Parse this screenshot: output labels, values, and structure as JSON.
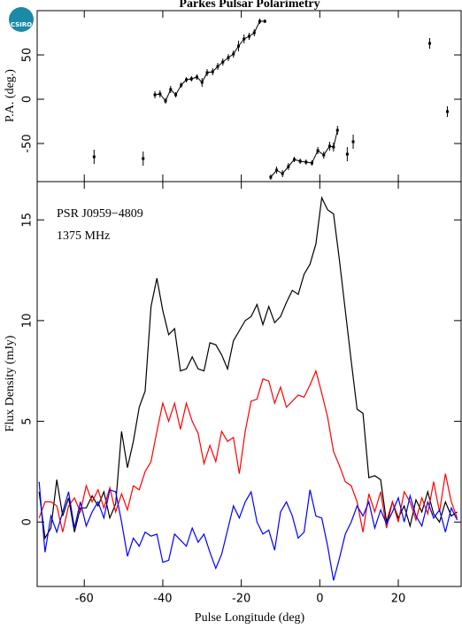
{
  "logo_text": "CSIRO",
  "chart_data": [
    {
      "type": "scatter",
      "title": "Parkes Pulsar Polarimetry",
      "y_label": "P.A. (deg.)",
      "xlim": [
        -72,
        36
      ],
      "ylim": [
        -93,
        100
      ],
      "xticks": [
        -60,
        -40,
        -20,
        0,
        20
      ],
      "yticks": [
        -50,
        0,
        50
      ],
      "color": "#000000",
      "segments": [
        {
          "connected": false,
          "x": [
            -57.5,
            -45
          ],
          "values": [
            -65,
            -67
          ],
          "errors": [
            8,
            8
          ]
        },
        {
          "connected": true,
          "x": [
            -42,
            -40.7,
            -39.3,
            -38,
            -36.7,
            -35.3,
            -34,
            -32.7,
            -31.3,
            -30,
            -28.7,
            -27.3,
            -26,
            -24.7,
            -23.3,
            -22,
            -20.7,
            -19.3,
            -18,
            -16.7,
            -15.3,
            -14
          ],
          "values": [
            5,
            6,
            -2,
            11,
            5,
            16,
            22,
            23,
            25,
            19,
            30,
            31,
            37,
            42,
            47,
            51,
            60,
            68,
            71,
            75,
            88,
            88
          ],
          "errors": [
            4,
            4,
            3,
            4,
            3,
            3,
            3,
            3,
            3,
            5,
            4,
            4,
            4,
            4,
            4,
            4,
            6,
            5,
            4,
            4,
            3,
            2
          ]
        },
        {
          "connected": true,
          "x": [
            -12.5,
            -11,
            -9.5,
            -8,
            -6.5,
            -5,
            -3.5,
            -2,
            -0.5,
            1,
            2.5,
            3.5,
            4.5
          ],
          "values": [
            -88,
            -80,
            -84,
            -76,
            -68,
            -70,
            -71,
            -72,
            -58,
            -63,
            -53,
            -54,
            -35
          ],
          "errors": [
            3,
            4,
            4,
            4,
            3,
            3,
            3,
            3,
            4,
            4,
            5,
            5,
            5
          ]
        },
        {
          "connected": false,
          "x": [
            7,
            8.5,
            28,
            32.5
          ],
          "values": [
            -62,
            -48,
            63,
            -14
          ],
          "errors": [
            8,
            8,
            6,
            6
          ]
        }
      ]
    },
    {
      "type": "line",
      "x_label": "Pulse Longitude (deg)",
      "y_label": "Flux Density (mJy)",
      "annotations": [
        "PSR J0959−4809",
        "1375 MHz"
      ],
      "xlim": [
        -72,
        36
      ],
      "ylim": [
        -3.2,
        16.9
      ],
      "xticks": [
        -60,
        -40,
        -20,
        0,
        20
      ],
      "yticks": [
        0,
        5,
        10,
        15
      ],
      "x": [
        -71.5,
        -70,
        -68.5,
        -67,
        -65.5,
        -64,
        -62.5,
        -61,
        -59.5,
        -58,
        -56.5,
        -55,
        -53.5,
        -52,
        -50.5,
        -49,
        -47.5,
        -46,
        -44.5,
        -43,
        -41.5,
        -40,
        -38.5,
        -37,
        -35.5,
        -34,
        -32.5,
        -31,
        -29.5,
        -28,
        -26.5,
        -25,
        -23.5,
        -22,
        -20.5,
        -19,
        -17.5,
        -16,
        -14.5,
        -13,
        -11.5,
        -10,
        -8.5,
        -7,
        -5.5,
        -4,
        -2.5,
        -1,
        0.5,
        2,
        3.5,
        5,
        6.5,
        8,
        9.5,
        11,
        12.5,
        14,
        15.5,
        17,
        18.5,
        20,
        21.5,
        23,
        24.5,
        26,
        27.5,
        29,
        30.5,
        32,
        33.5,
        35
      ],
      "series": [
        {
          "color": "#000000",
          "values": [
            1.5,
            -0.8,
            -0.3,
            2.1,
            0.3,
            1.2,
            -0.5,
            0.7,
            0.7,
            1.3,
            0.8,
            1.5,
            0.2,
            0.9,
            4.5,
            2.7,
            4.0,
            5.7,
            6.5,
            10.7,
            12.1,
            10.5,
            9.3,
            9.6,
            7.5,
            7.6,
            8.2,
            7.6,
            7.5,
            8.9,
            8.8,
            8.3,
            7.6,
            9.0,
            9.5,
            10.0,
            10.2,
            10.8,
            9.8,
            10.7,
            9.9,
            10.2,
            10.9,
            11.5,
            11.3,
            12.3,
            12.8,
            13.8,
            16.1,
            15.5,
            15.3,
            13.0,
            10.5,
            8.0,
            5.6,
            5.4,
            2.2,
            2.3,
            2.1,
            0.0,
            1.0,
            0.2,
            0.8,
            -0.2,
            1.1,
            0.5,
            1.5,
            0.4,
            0.0,
            1.0,
            0.3,
            0.5
          ]
        },
        {
          "color": "#ff0000",
          "values": [
            0.2,
            1.0,
            1.0,
            0.8,
            -0.5,
            0.8,
            1.2,
            0.5,
            1.8,
            1.0,
            1.6,
            0.7,
            1.7,
            0.5,
            1.4,
            0.6,
            1.8,
            1.6,
            2.5,
            3.0,
            4.5,
            5.9,
            5.0,
            5.9,
            4.6,
            5.9,
            5.0,
            4.4,
            2.9,
            3.8,
            3.0,
            4.5,
            4.0,
            4.2,
            2.4,
            4.5,
            6.0,
            6.1,
            7.1,
            7.0,
            5.9,
            6.7,
            5.7,
            6.0,
            6.3,
            6.2,
            6.8,
            7.5,
            6.4,
            5.2,
            3.5,
            2.8,
            2.0,
            1.8,
            1.0,
            -0.5,
            1.4,
            0.5,
            1.5,
            -0.3,
            1.0,
            0.0,
            1.5,
            1.0,
            0.1,
            1.2,
            0.4,
            2.0,
            0.5,
            2.4,
            1.0,
            0.2
          ]
        },
        {
          "color": "#0000ff",
          "values": [
            2.0,
            -1.5,
            0.3,
            -0.5,
            0.5,
            1.5,
            -0.3,
            1.0,
            -0.2,
            0.5,
            1.0,
            0.2,
            1.6,
            1.5,
            0.0,
            -1.7,
            -0.8,
            -1.2,
            -0.5,
            -0.7,
            -0.6,
            -2.0,
            -1.9,
            -0.6,
            -0.9,
            -1.2,
            -0.3,
            -1.0,
            -0.6,
            -1.5,
            -2.3,
            -1.6,
            -0.4,
            0.8,
            0.2,
            1.0,
            1.5,
            0.0,
            -0.6,
            -0.4,
            -1.4,
            0.5,
            1.0,
            0.3,
            -0.8,
            -0.5,
            1.6,
            0.3,
            0.2,
            -1.2,
            -2.9,
            -1.8,
            -0.6,
            0.0,
            0.8,
            0.3,
            1.0,
            -0.3,
            0.6,
            -0.1,
            0.5,
            1.2,
            0.0,
            1.3,
            0.3,
            -0.2,
            1.0,
            0.2,
            0.6,
            -0.5,
            0.7,
            0.1
          ]
        }
      ]
    }
  ]
}
